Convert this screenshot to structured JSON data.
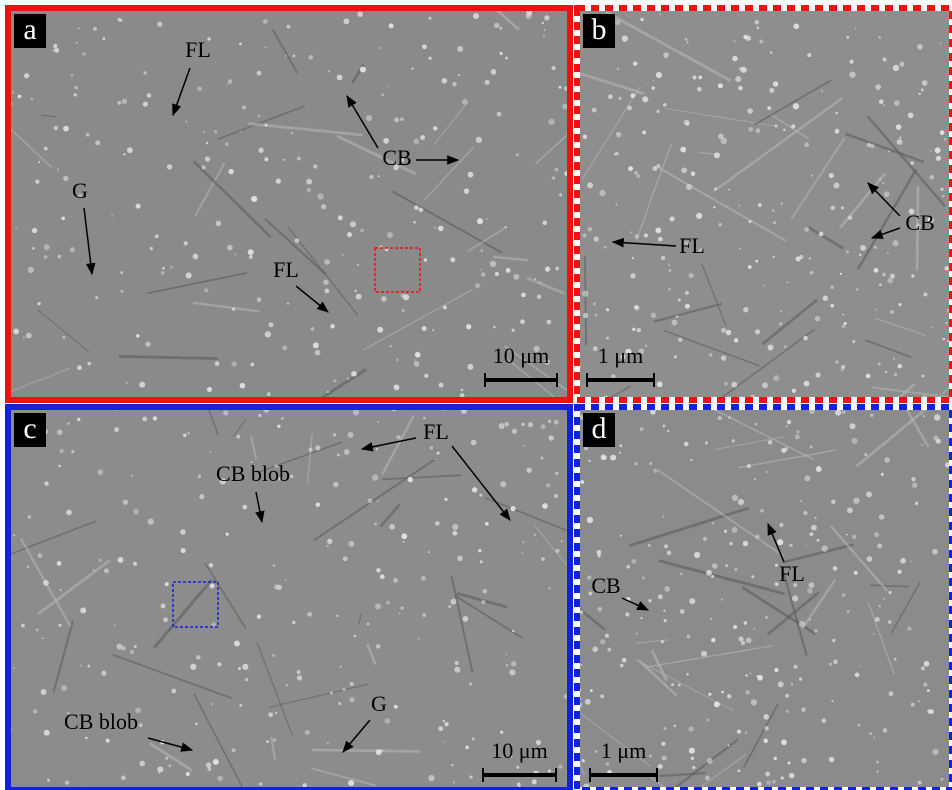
{
  "panels": [
    {
      "label": "a",
      "annotations": [
        "FL",
        "CB",
        "G",
        "FL"
      ],
      "scale_bar": "10 μm"
    },
    {
      "label": "b",
      "annotations": [
        "FL",
        "CB"
      ],
      "scale_bar": "1 μm"
    },
    {
      "label": "c",
      "annotations": [
        "FL",
        "CB blob",
        "CB blob",
        "G"
      ],
      "scale_bar": "10 μm"
    },
    {
      "label": "d",
      "annotations": [
        "FL",
        "CB"
      ],
      "scale_bar": "1 μm"
    }
  ]
}
